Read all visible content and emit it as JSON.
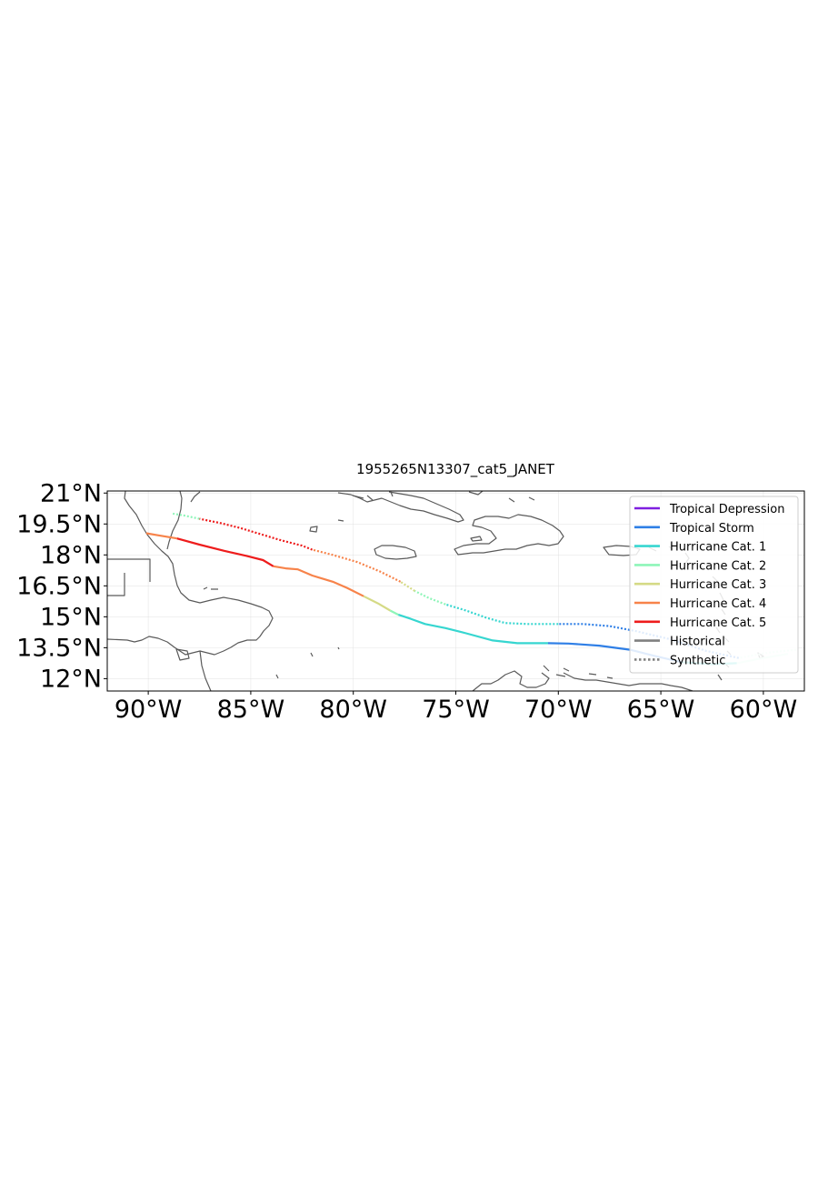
{
  "title": "1955265N13307_cat5_JANET",
  "chart_data": {
    "type": "line",
    "title": "1955265N13307_cat5_JANET",
    "xlabel": "",
    "ylabel": "",
    "xlim": [
      -92,
      -58
    ],
    "ylim": [
      11.4,
      21.1
    ],
    "x_ticks": [
      {
        "value": -90,
        "label": "90°W"
      },
      {
        "value": -85,
        "label": "85°W"
      },
      {
        "value": -80,
        "label": "80°W"
      },
      {
        "value": -75,
        "label": "75°W"
      },
      {
        "value": -70,
        "label": "70°W"
      },
      {
        "value": -65,
        "label": "65°W"
      },
      {
        "value": -60,
        "label": "60°W"
      }
    ],
    "y_ticks": [
      {
        "value": 12,
        "label": "12°N"
      },
      {
        "value": 13.5,
        "label": "13.5°N"
      },
      {
        "value": 15,
        "label": "15°N"
      },
      {
        "value": 16.5,
        "label": "16.5°N"
      },
      {
        "value": 18,
        "label": "18°N"
      },
      {
        "value": 19.5,
        "label": "19.5°N"
      },
      {
        "value": 21,
        "label": "21°N"
      }
    ],
    "grid": true,
    "legend_position": "top-right",
    "legend": [
      {
        "label": "Tropical Depression",
        "color": "#7f1fe0",
        "style": "solid"
      },
      {
        "label": "Tropical Storm",
        "color": "#2f7fe6",
        "style": "solid"
      },
      {
        "label": "Hurricane Cat. 1",
        "color": "#36d6d0",
        "style": "solid"
      },
      {
        "label": "Hurricane Cat. 2",
        "color": "#8ef5b8",
        "style": "solid"
      },
      {
        "label": "Hurricane Cat. 3",
        "color": "#d5da86",
        "style": "solid"
      },
      {
        "label": "Hurricane Cat. 4",
        "color": "#f7834a",
        "style": "solid"
      },
      {
        "label": "Hurricane Cat. 5",
        "color": "#ee1c1c",
        "style": "solid"
      },
      {
        "label": "Historical",
        "color": "#808080",
        "style": "solid"
      },
      {
        "label": "Synthetic",
        "color": "#808080",
        "style": "dotted"
      }
    ],
    "tracks": [
      {
        "kind": "historical",
        "segments": [
          {
            "category": "Hurricane Cat. 2",
            "color": "#d8fbe8",
            "points": [
              [
                -58.8,
                13.2
              ],
              [
                -60.0,
                13.0
              ],
              [
                -61.3,
                12.75
              ]
            ]
          },
          {
            "category": "Hurricane Cat. 1",
            "color": "#36d6d0",
            "points": [
              [
                -61.3,
                12.75
              ],
              [
                -62.5,
                12.7
              ],
              [
                -64.0,
                12.8
              ]
            ]
          },
          {
            "category": "Tropical Storm",
            "color": "#2f7fe6",
            "points": [
              [
                -64.0,
                12.8
              ],
              [
                -65.3,
                13.1
              ],
              [
                -66.5,
                13.4
              ],
              [
                -68.0,
                13.6
              ],
              [
                -69.5,
                13.7
              ],
              [
                -70.5,
                13.72
              ]
            ]
          },
          {
            "category": "Hurricane Cat. 1",
            "color": "#36d6d0",
            "points": [
              [
                -70.5,
                13.72
              ],
              [
                -72.0,
                13.72
              ],
              [
                -73.2,
                13.85
              ],
              [
                -74.5,
                14.2
              ],
              [
                -75.5,
                14.45
              ],
              [
                -76.5,
                14.65
              ],
              [
                -77.2,
                14.9
              ],
              [
                -77.8,
                15.1
              ]
            ]
          },
          {
            "category": "Hurricane Cat. 2",
            "color": "#8ef5b8",
            "points": [
              [
                -77.8,
                15.1
              ],
              [
                -78.2,
                15.3
              ]
            ]
          },
          {
            "category": "Hurricane Cat. 3",
            "color": "#d5da86",
            "points": [
              [
                -78.2,
                15.3
              ],
              [
                -78.8,
                15.65
              ],
              [
                -79.5,
                16.0
              ]
            ]
          },
          {
            "category": "Hurricane Cat. 4",
            "color": "#f7834a",
            "points": [
              [
                -79.5,
                16.0
              ],
              [
                -80.3,
                16.4
              ],
              [
                -81.0,
                16.7
              ],
              [
                -82.0,
                17.0
              ],
              [
                -82.7,
                17.3
              ],
              [
                -83.3,
                17.35
              ],
              [
                -83.9,
                17.45
              ]
            ]
          },
          {
            "category": "Hurricane Cat. 5",
            "color": "#ee1c1c",
            "points": [
              [
                -83.9,
                17.45
              ],
              [
                -84.4,
                17.75
              ],
              [
                -85.2,
                17.95
              ],
              [
                -86.3,
                18.2
              ],
              [
                -87.5,
                18.5
              ],
              [
                -88.6,
                18.8
              ]
            ]
          },
          {
            "category": "Hurricane Cat. 4",
            "color": "#f7834a",
            "points": [
              [
                -88.6,
                18.8
              ],
              [
                -89.5,
                18.95
              ],
              [
                -90.1,
                19.05
              ]
            ]
          }
        ]
      },
      {
        "kind": "synthetic",
        "segments": [
          {
            "category": "Hurricane Cat. 2",
            "color": "#d8fbe8",
            "points": [
              [
                -58.4,
                13.4
              ],
              [
                -59.8,
                13.25
              ],
              [
                -61.2,
                13.0
              ]
            ]
          },
          {
            "category": "Tropical Storm",
            "color": "#2f7fe6",
            "points": [
              [
                -61.2,
                13.0
              ],
              [
                -62.8,
                13.35
              ],
              [
                -64.5,
                13.9
              ],
              [
                -66.2,
                14.3
              ],
              [
                -67.5,
                14.55
              ],
              [
                -68.8,
                14.65
              ],
              [
                -70.0,
                14.65
              ]
            ]
          },
          {
            "category": "Hurricane Cat. 1",
            "color": "#36d6d0",
            "points": [
              [
                -70.0,
                14.65
              ],
              [
                -71.5,
                14.65
              ],
              [
                -72.6,
                14.7
              ],
              [
                -73.5,
                14.95
              ],
              [
                -74.5,
                15.3
              ],
              [
                -75.5,
                15.6
              ]
            ]
          },
          {
            "category": "Hurricane Cat. 2",
            "color": "#8ef5b8",
            "points": [
              [
                -75.5,
                15.6
              ],
              [
                -76.3,
                15.9
              ],
              [
                -77.0,
                16.25
              ]
            ]
          },
          {
            "category": "Hurricane Cat. 3",
            "color": "#d5da86",
            "points": [
              [
                -77.0,
                16.25
              ],
              [
                -77.7,
                16.7
              ]
            ]
          },
          {
            "category": "Hurricane Cat. 4",
            "color": "#f7834a",
            "points": [
              [
                -77.7,
                16.7
              ],
              [
                -78.7,
                17.2
              ],
              [
                -79.8,
                17.65
              ],
              [
                -81.0,
                18.0
              ],
              [
                -82.0,
                18.25
              ]
            ]
          },
          {
            "category": "Hurricane Cat. 5",
            "color": "#ee1c1c",
            "points": [
              [
                -82.0,
                18.25
              ],
              [
                -82.5,
                18.45
              ],
              [
                -83.5,
                18.7
              ],
              [
                -84.5,
                19.0
              ],
              [
                -85.5,
                19.3
              ],
              [
                -86.5,
                19.55
              ],
              [
                -87.5,
                19.75
              ]
            ]
          },
          {
            "category": "Hurricane Cat. 2",
            "color": "#8ef5b8",
            "points": [
              [
                -87.5,
                19.75
              ],
              [
                -88.2,
                19.9
              ],
              [
                -88.8,
                20.0
              ]
            ]
          }
        ]
      }
    ]
  }
}
